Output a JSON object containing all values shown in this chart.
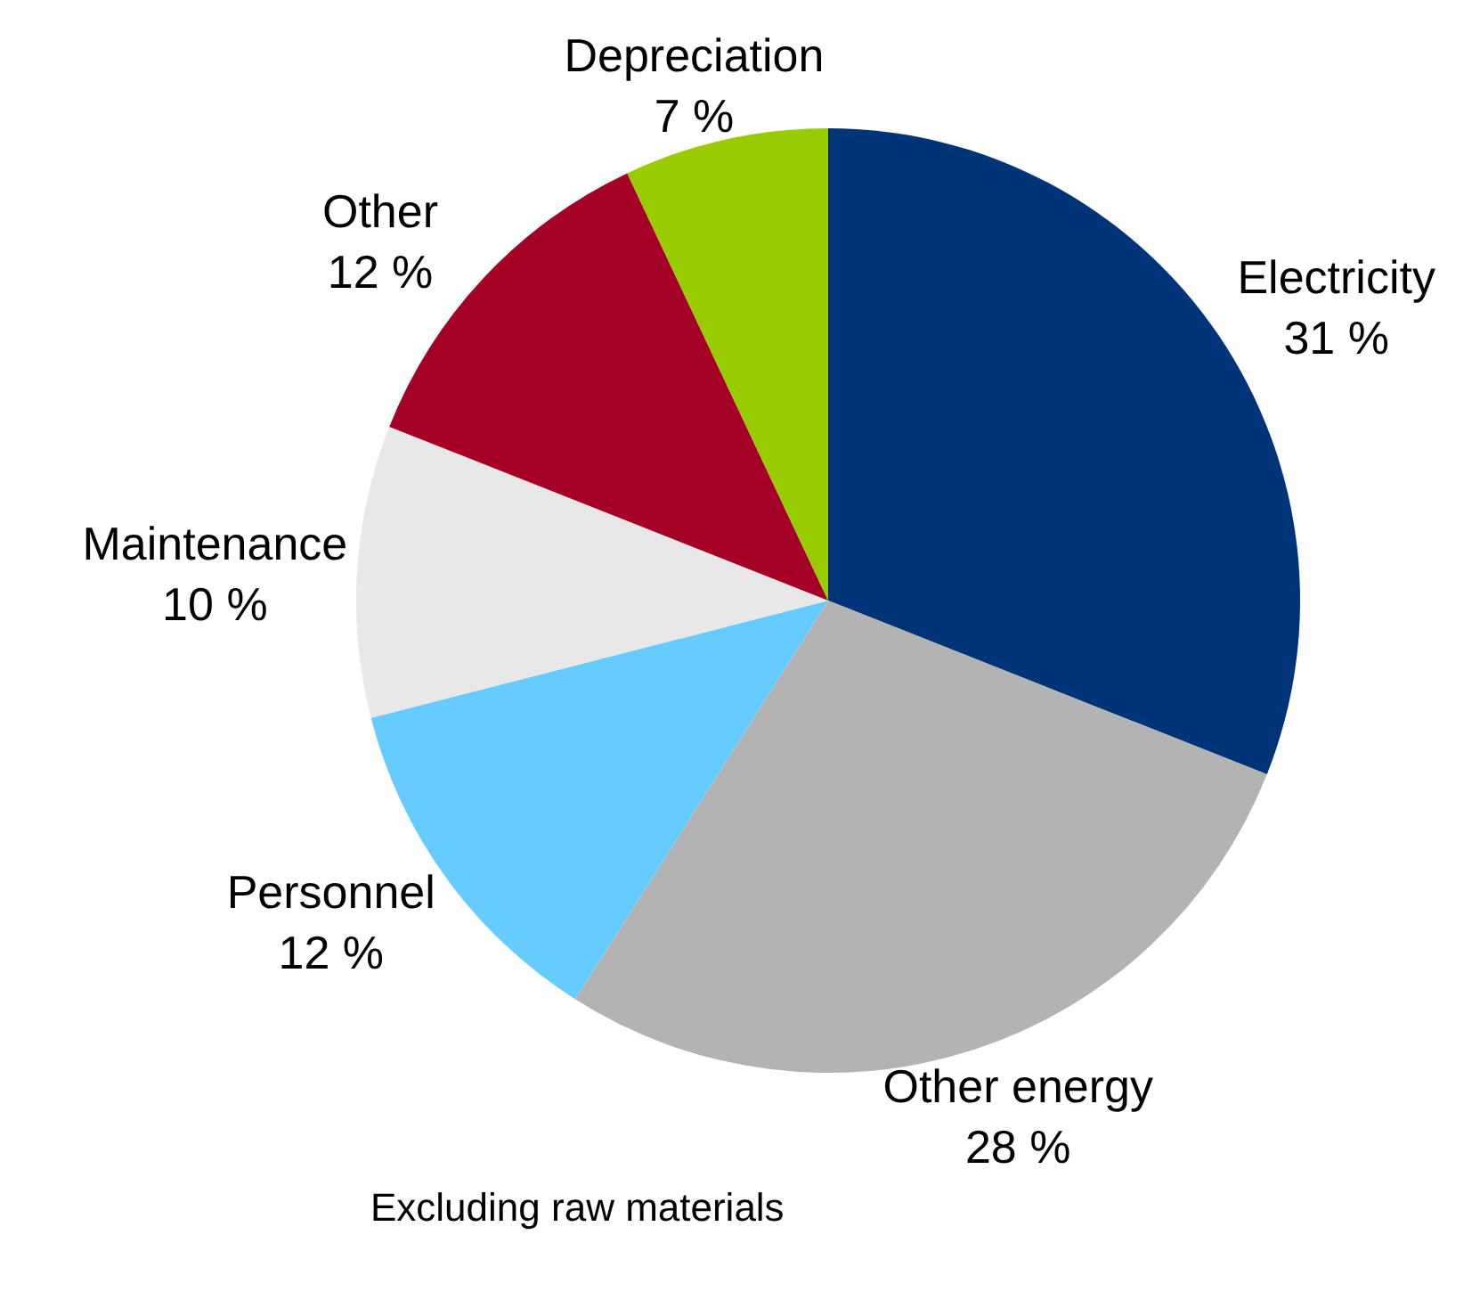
{
  "chart_data": {
    "type": "pie",
    "categories": [
      "Electricity",
      "Other energy",
      "Personnel",
      "Maintenance",
      "Other",
      "Depreciation"
    ],
    "values": [
      31,
      28,
      12,
      10,
      12,
      7
    ],
    "colors": [
      "#003478",
      "#b3b3b3",
      "#66ccff",
      "#e8e8e8",
      "#a50026",
      "#99cc00"
    ],
    "value_labels": [
      "31 %",
      "28 %",
      "12 %",
      "10 %",
      "12 %",
      "7 %"
    ],
    "legend": false,
    "annotations": [
      "Excluding raw materials"
    ]
  }
}
